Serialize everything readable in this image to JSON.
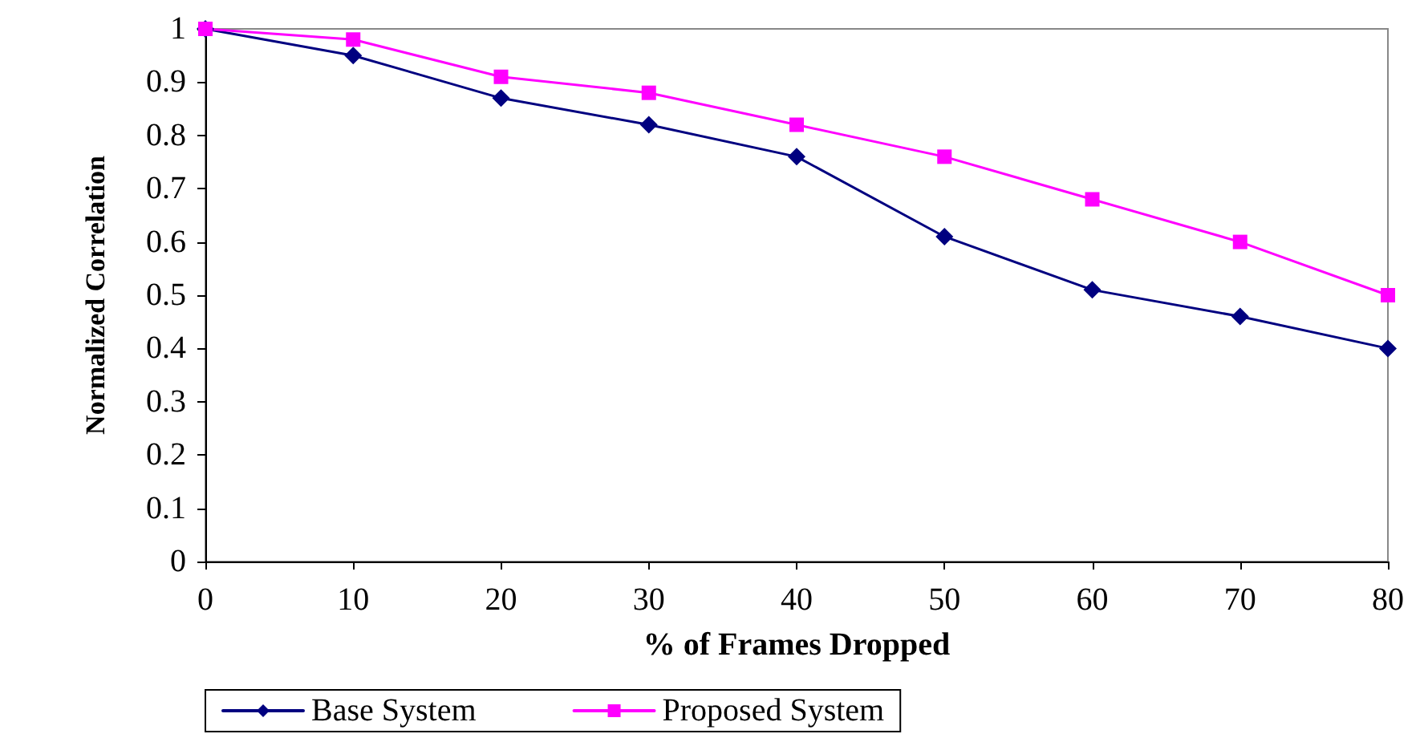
{
  "chart_data": {
    "type": "line",
    "xlabel": "% of Frames Dropped",
    "ylabel": "Normalized Correlation",
    "x": [
      0,
      10,
      20,
      30,
      40,
      50,
      60,
      70,
      80
    ],
    "series": [
      {
        "name": "Base System",
        "color": "#000080",
        "marker": "diamond",
        "values": [
          1,
          0.95,
          0.87,
          0.82,
          0.76,
          0.61,
          0.51,
          0.46,
          0.4
        ]
      },
      {
        "name": "Proposed System",
        "color": "#ff00ff",
        "marker": "square",
        "values": [
          1,
          0.98,
          0.91,
          0.88,
          0.82,
          0.76,
          0.68,
          0.6,
          0.5
        ]
      }
    ],
    "xlim": [
      0,
      80
    ],
    "xticks": [
      0,
      10,
      20,
      30,
      40,
      50,
      60,
      70,
      80
    ],
    "ylim": [
      0,
      1
    ],
    "yticks": [
      0,
      0.1,
      0.2,
      0.3,
      0.4,
      0.5,
      0.6,
      0.7,
      0.8,
      0.9,
      1
    ],
    "grid": false,
    "legend": "bottom",
    "line_style": "solid"
  }
}
